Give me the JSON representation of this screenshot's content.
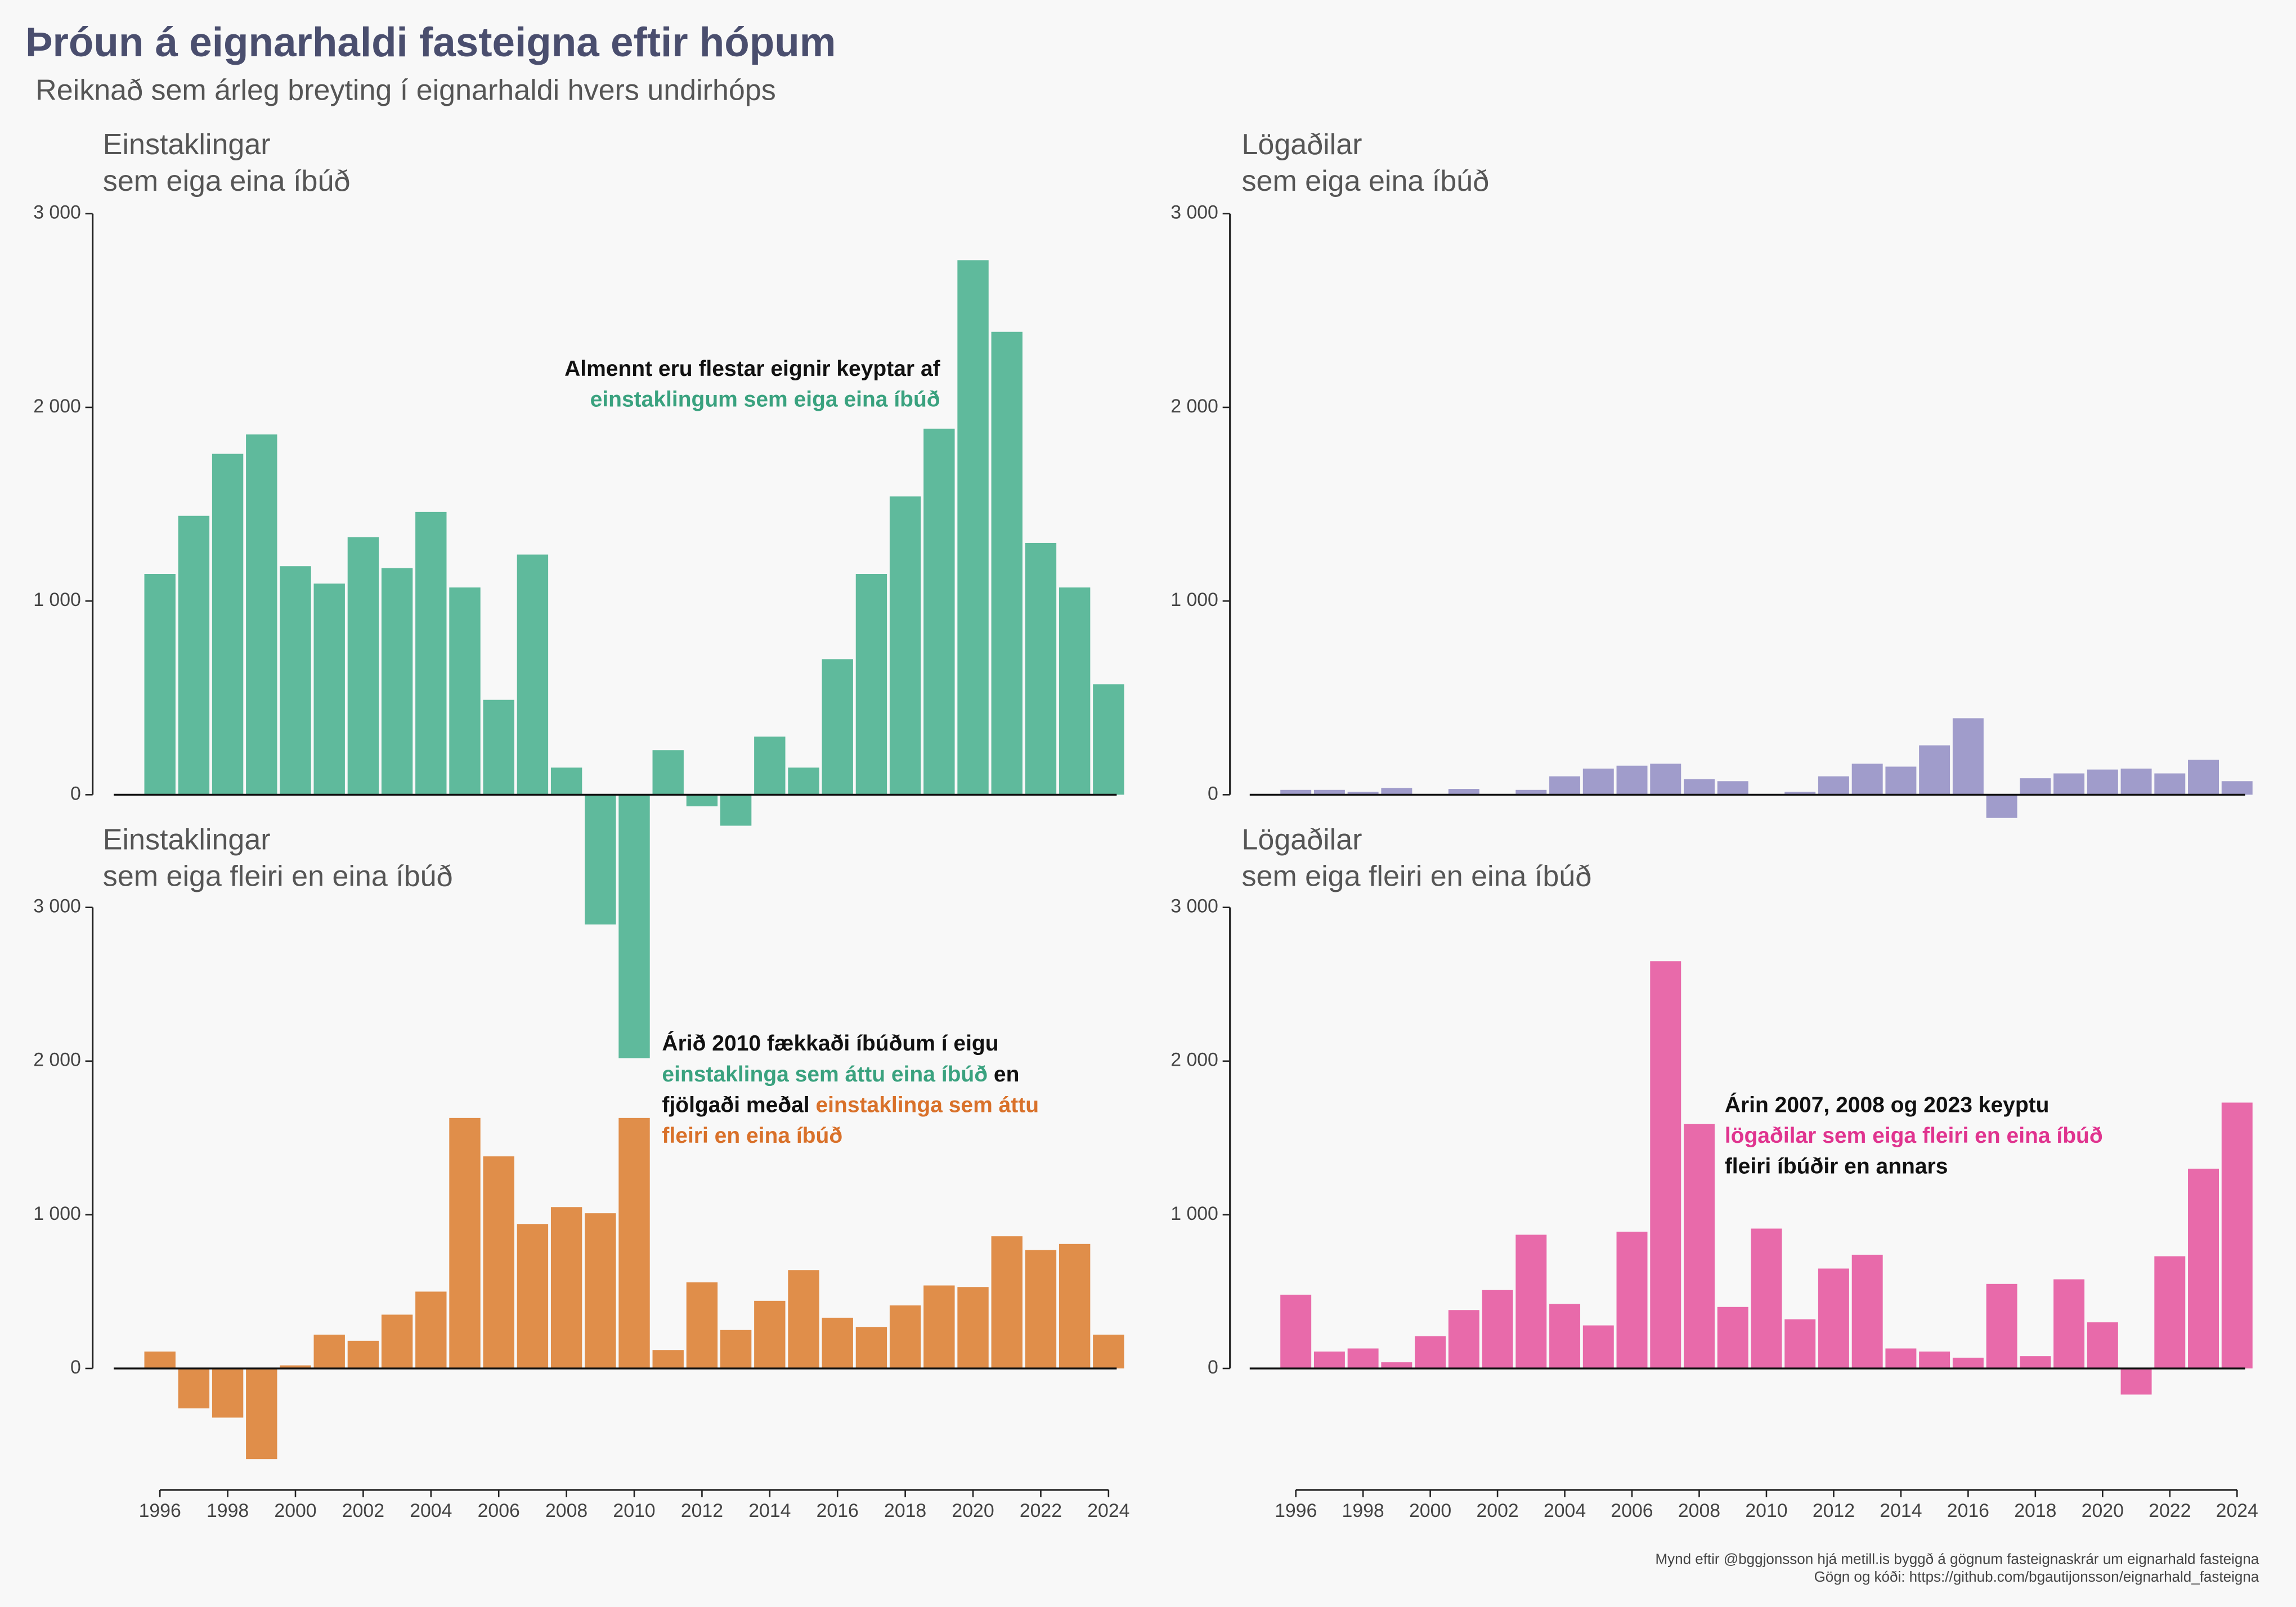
{
  "title": "Þróun á eignarhaldi fasteigna eftir hópum",
  "subtitle": "Reiknað sem árleg breyting í eignarhaldi hvers undirhóps",
  "source": [
    "Mynd eftir @bggjonsson hjá metill.is byggð á gögnum fasteignaskrár um eignarhald fasteigna",
    "Gögn og kóði: https://github.com/bgautijonsson/eignarhald_fasteigna"
  ],
  "chart_data": [
    {
      "type": "bar",
      "title": [
        "Einstaklingar",
        "sem eiga eina íbúð"
      ],
      "color": "#5fba9c",
      "x": [
        1996,
        1997,
        1998,
        1999,
        2000,
        2001,
        2002,
        2003,
        2004,
        2005,
        2006,
        2007,
        2008,
        2009,
        2010,
        2011,
        2012,
        2013,
        2014,
        2015,
        2016,
        2017,
        2018,
        2019,
        2020,
        2021,
        2022,
        2023,
        2024
      ],
      "values": [
        1140,
        1440,
        1760,
        1860,
        1180,
        1090,
        1330,
        1170,
        1460,
        1070,
        490,
        1240,
        140,
        -670,
        -1360,
        230,
        -60,
        -160,
        300,
        140,
        700,
        1140,
        1540,
        1890,
        2760,
        2390,
        1300,
        1070,
        570
      ],
      "xlim": [
        1995.5,
        2024.5
      ],
      "ylim": [
        -1500,
        3000
      ],
      "yticks": [
        0,
        {
          "value": 1000,
          "label": "1 000"
        },
        {
          "value": 2000,
          "label": "2 000"
        },
        {
          "value": 3000,
          "label": "3 000"
        }
      ],
      "annotation": [
        [
          {
            "text": "Almennt eru flestar eignir keyptar af",
            "color": "#111111"
          }
        ],
        [
          {
            "text": "einstaklingum sem eiga eina íbúð",
            "color": "#3aa27f"
          }
        ]
      ]
    },
    {
      "type": "bar",
      "title": [
        "Lögaðilar",
        "sem eiga eina íbúð"
      ],
      "color": "#a09ccb",
      "x": [
        1996,
        1997,
        1998,
        1999,
        2000,
        2001,
        2002,
        2003,
        2004,
        2005,
        2006,
        2007,
        2008,
        2009,
        2010,
        2011,
        2012,
        2013,
        2014,
        2015,
        2016,
        2017,
        2018,
        2019,
        2020,
        2021,
        2022,
        2023,
        2024
      ],
      "values": [
        25,
        25,
        15,
        35,
        0,
        30,
        0,
        25,
        95,
        135,
        150,
        160,
        80,
        70,
        -5,
        15,
        95,
        160,
        145,
        255,
        395,
        -120,
        85,
        110,
        130,
        135,
        110,
        180,
        70
      ],
      "xlim": [
        1995.5,
        2024.5
      ],
      "ylim": [
        -1500,
        3000
      ],
      "yticks": [
        0,
        {
          "value": 1000,
          "label": "1 000"
        },
        {
          "value": 2000,
          "label": "2 000"
        },
        {
          "value": 3000,
          "label": "3 000"
        }
      ]
    },
    {
      "type": "bar",
      "title": [
        "Einstaklingar",
        "sem eiga fleiri en eina íbúð"
      ],
      "color": "#e08e4a",
      "x": [
        1996,
        1997,
        1998,
        1999,
        2000,
        2001,
        2002,
        2003,
        2004,
        2005,
        2006,
        2007,
        2008,
        2009,
        2010,
        2011,
        2012,
        2013,
        2014,
        2015,
        2016,
        2017,
        2018,
        2019,
        2020,
        2021,
        2022,
        2023,
        2024
      ],
      "values": [
        110,
        -260,
        -320,
        -590,
        20,
        220,
        180,
        350,
        500,
        1630,
        1380,
        940,
        1050,
        1010,
        1630,
        120,
        560,
        250,
        440,
        640,
        330,
        270,
        410,
        540,
        530,
        860,
        770,
        810,
        220
      ],
      "xlim": [
        1995.5,
        2024.5
      ],
      "ylim": [
        -700,
        3000
      ],
      "yticks": [
        0,
        {
          "value": 1000,
          "label": "1 000"
        },
        {
          "value": 2000,
          "label": "2 000"
        },
        {
          "value": 3000,
          "label": "3 000"
        }
      ],
      "xticks": [
        1996,
        1998,
        2000,
        2002,
        2004,
        2006,
        2008,
        2010,
        2012,
        2014,
        2016,
        2018,
        2020,
        2022,
        2024
      ],
      "annotation": [
        [
          {
            "text": "Árið 2010 fækkaði íbúðum í eigu",
            "color": "#111111"
          }
        ],
        [
          {
            "text": "einstaklinga sem áttu eina íbúð",
            "color": "#3aa27f"
          },
          {
            "text": " en",
            "color": "#111111"
          }
        ],
        [
          {
            "text": "fjölgaði meðal ",
            "color": "#111111"
          },
          {
            "text": "einstaklinga sem áttu",
            "color": "#d9712a"
          }
        ],
        [
          {
            "text": "fleiri en eina íbúð",
            "color": "#d9712a"
          }
        ]
      ]
    },
    {
      "type": "bar",
      "title": [
        "Lögaðilar",
        "sem eiga fleiri en eina íbúð"
      ],
      "color": "#e86aaa",
      "x": [
        1996,
        1997,
        1998,
        1999,
        2000,
        2001,
        2002,
        2003,
        2004,
        2005,
        2006,
        2007,
        2008,
        2009,
        2010,
        2011,
        2012,
        2013,
        2014,
        2015,
        2016,
        2017,
        2018,
        2019,
        2020,
        2021,
        2022,
        2023,
        2024
      ],
      "values": [
        480,
        110,
        130,
        40,
        210,
        380,
        510,
        870,
        420,
        280,
        890,
        2650,
        1590,
        400,
        910,
        320,
        650,
        740,
        130,
        110,
        70,
        550,
        80,
        580,
        300,
        -170,
        730,
        1300,
        1730
      ],
      "xlim": [
        1995.5,
        2024.5
      ],
      "ylim": [
        -700,
        3000
      ],
      "yticks": [
        0,
        {
          "value": 1000,
          "label": "1 000"
        },
        {
          "value": 2000,
          "label": "2 000"
        },
        {
          "value": 3000,
          "label": "3 000"
        }
      ],
      "xticks": [
        1996,
        1998,
        2000,
        2002,
        2004,
        2006,
        2008,
        2010,
        2012,
        2014,
        2016,
        2018,
        2020,
        2022,
        2024
      ],
      "annotation": [
        [
          {
            "text": "Árin 2007, 2008 og 2023 keyptu",
            "color": "#111111"
          }
        ],
        [
          {
            "text": "lögaðilar sem eiga fleiri en eina íbúð",
            "color": "#e0348f"
          }
        ],
        [
          {
            "text": "fleiri íbúðir en annars",
            "color": "#111111"
          }
        ]
      ]
    }
  ]
}
